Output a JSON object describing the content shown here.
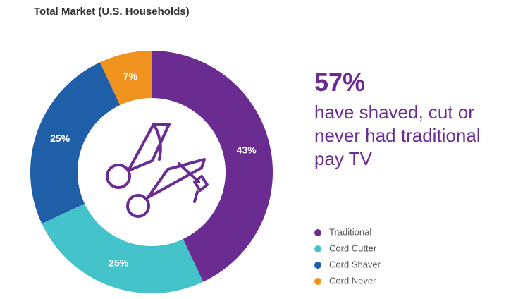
{
  "chart_data": {
    "type": "donut",
    "title": "Total Market (U.S. Households)",
    "categories": [
      "Traditional",
      "Cord Cutter",
      "Cord Shaver",
      "Cord Never"
    ],
    "values": [
      43,
      25,
      25,
      7
    ],
    "value_labels": [
      "43%",
      "25%",
      "25%",
      "7%"
    ],
    "colors": [
      "#6a2c91",
      "#45c3cb",
      "#1f5fa8",
      "#f0921e"
    ],
    "headline": "57%",
    "subheadline": "have shaved, cut or never had traditional pay TV"
  }
}
